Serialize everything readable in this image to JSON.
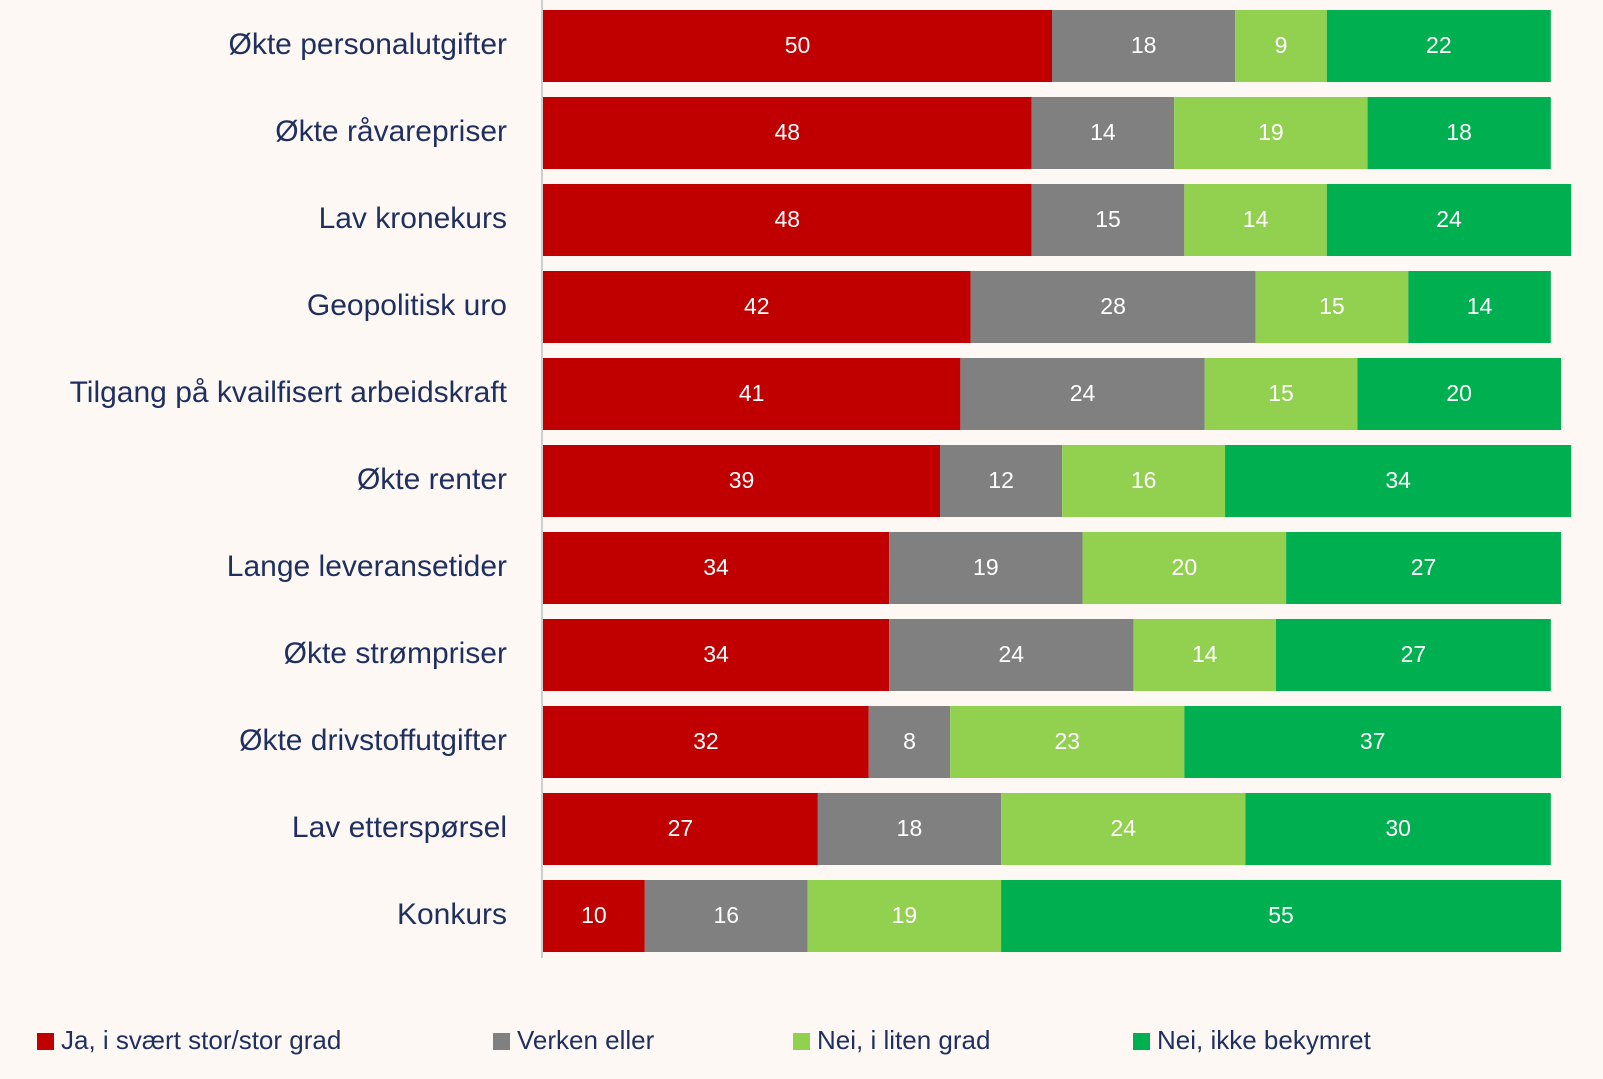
{
  "chart_data": {
    "type": "stacked-barh",
    "categories": [
      "Økte personalutgifter",
      "Økte råvarepriser",
      "Lav kronekurs",
      "Geopolitisk uro",
      "Tilgang på kvailfisert arbeidskraft",
      "Økte renter",
      "Lange leveransetider",
      "Økte strømpriser",
      "Økte drivstoffutgifter",
      "Lav etterspørsel",
      "Konkurs"
    ],
    "series": [
      {
        "name": "Ja, i svært stor/stor grad",
        "color": "#c00000",
        "values": [
          50,
          48,
          48,
          42,
          41,
          39,
          34,
          34,
          32,
          27,
          10
        ]
      },
      {
        "name": "Verken eller",
        "color": "#808080",
        "values": [
          18,
          14,
          15,
          28,
          24,
          12,
          19,
          24,
          8,
          18,
          16
        ]
      },
      {
        "name": "Nei, i liten grad",
        "color": "#92d050",
        "values": [
          9,
          19,
          14,
          15,
          15,
          16,
          20,
          14,
          23,
          24,
          19
        ]
      },
      {
        "name": "Nei, ikke bekymret",
        "color": "#00b050",
        "values": [
          22,
          18,
          24,
          14,
          20,
          34,
          27,
          27,
          37,
          30,
          55
        ]
      }
    ],
    "xlim": [
      0,
      100
    ],
    "legend": "bottom"
  }
}
